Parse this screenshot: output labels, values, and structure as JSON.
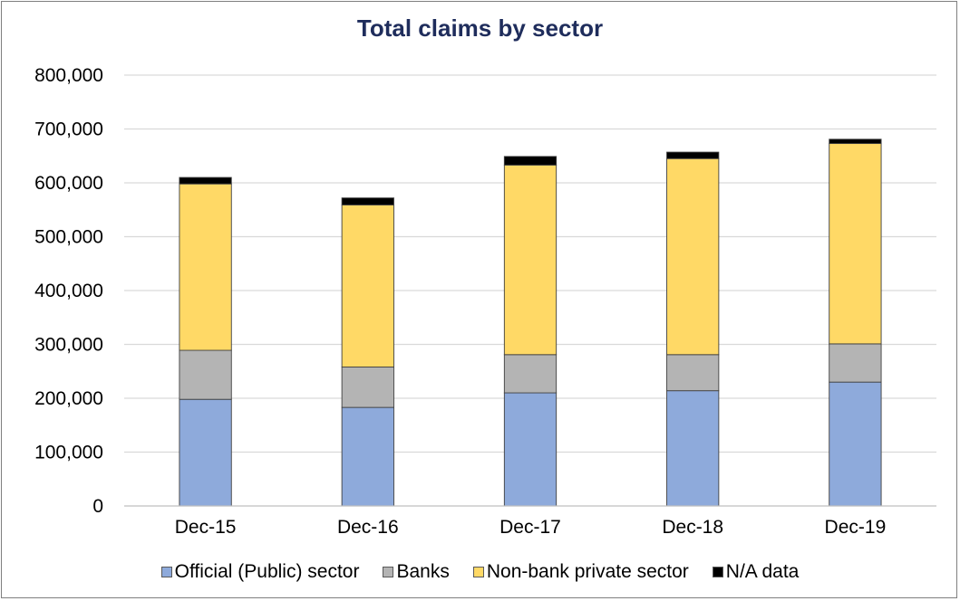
{
  "chart_data": {
    "type": "bar",
    "stacked": true,
    "title": "Total claims by sector",
    "xlabel": "",
    "ylabel": "",
    "categories": [
      "Dec-15",
      "Dec-16",
      "Dec-17",
      "Dec-18",
      "Dec-19"
    ],
    "series": [
      {
        "name": "Official (Public) sector",
        "color": "#8eaadb",
        "values": [
          198000,
          183000,
          210000,
          214000,
          230000
        ]
      },
      {
        "name": "Banks",
        "color": "#b4b4b4",
        "values": [
          91000,
          75000,
          71000,
          67000,
          71000
        ]
      },
      {
        "name": "Non-bank private sector",
        "color": "#ffd966",
        "values": [
          309000,
          301000,
          352000,
          364000,
          372000
        ]
      },
      {
        "name": "N/A data",
        "color": "#000000",
        "values": [
          12000,
          13000,
          16000,
          12000,
          8000
        ]
      }
    ],
    "ylim": [
      0,
      800000
    ],
    "yticks": [
      "0",
      "100,000",
      "200,000",
      "300,000",
      "400,000",
      "500,000",
      "600,000",
      "700,000",
      "800,000"
    ],
    "grid": true,
    "legend_position": "bottom"
  }
}
